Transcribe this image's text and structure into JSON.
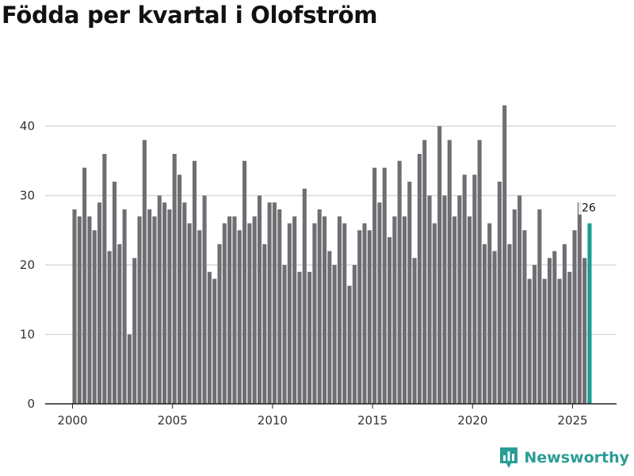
{
  "chart_data": {
    "type": "bar",
    "title": "Födda per kvartal i Olofström",
    "xlabel": "",
    "ylabel": "",
    "ylim": [
      0,
      45
    ],
    "yticks": [
      0,
      10,
      20,
      30,
      40
    ],
    "xticks": [
      "2000",
      "2005",
      "2010",
      "2015",
      "2020",
      "2025"
    ],
    "grid": true,
    "colors": {
      "bar": "#6e6e73",
      "highlight": "#1a9e94",
      "grid": "#d9d9d9",
      "axis": "#222222"
    },
    "categories": [
      "2000 K1",
      "2000 K2",
      "2000 K3",
      "2000 K4",
      "2001 K1",
      "2001 K2",
      "2001 K3",
      "2001 K4",
      "2002 K1",
      "2002 K2",
      "2002 K3",
      "2002 K4",
      "2003 K1",
      "2003 K2",
      "2003 K3",
      "2003 K4",
      "2004 K1",
      "2004 K2",
      "2004 K3",
      "2004 K4",
      "2005 K1",
      "2005 K2",
      "2005 K3",
      "2005 K4",
      "2006 K1",
      "2006 K2",
      "2006 K3",
      "2006 K4",
      "2007 K1",
      "2007 K2",
      "2007 K3",
      "2007 K4",
      "2008 K1",
      "2008 K2",
      "2008 K3",
      "2008 K4",
      "2009 K1",
      "2009 K2",
      "2009 K3",
      "2009 K4",
      "2010 K1",
      "2010 K2",
      "2010 K3",
      "2010 K4",
      "2011 K1",
      "2011 K2",
      "2011 K3",
      "2011 K4",
      "2012 K1",
      "2012 K2",
      "2012 K3",
      "2012 K4",
      "2013 K1",
      "2013 K2",
      "2013 K3",
      "2013 K4",
      "2014 K1",
      "2014 K2",
      "2014 K3",
      "2014 K4",
      "2015 K1",
      "2015 K2",
      "2015 K3",
      "2015 K4",
      "2016 K1",
      "2016 K2",
      "2016 K3",
      "2016 K4",
      "2017 K1",
      "2017 K2",
      "2017 K3",
      "2017 K4",
      "2018 K1",
      "2018 K2",
      "2018 K3",
      "2018 K4",
      "2019 K1",
      "2019 K2",
      "2019 K3",
      "2019 K4",
      "2020 K1",
      "2020 K2",
      "2020 K3",
      "2020 K4",
      "2021 K1",
      "2021 K2",
      "2021 K3",
      "2021 K4",
      "2022 K1",
      "2022 K2",
      "2022 K3",
      "2022 K4",
      "2023 K1",
      "2023 K2",
      "2023 K3",
      "2023 K4",
      "2024 K1",
      "2024 K2",
      "2024 K3",
      "2024 K4",
      "2025 K1",
      "2025 K2",
      "2025 K3",
      "2025 K4"
    ],
    "values": [
      28,
      27,
      34,
      27,
      25,
      29,
      36,
      22,
      32,
      23,
      28,
      10,
      21,
      27,
      38,
      28,
      27,
      30,
      29,
      28,
      36,
      33,
      29,
      26,
      35,
      25,
      30,
      19,
      18,
      23,
      26,
      27,
      27,
      25,
      35,
      26,
      27,
      30,
      23,
      29,
      29,
      28,
      20,
      26,
      27,
      19,
      31,
      19,
      26,
      28,
      27,
      22,
      20,
      27,
      26,
      17,
      20,
      25,
      26,
      25,
      34,
      29,
      34,
      24,
      27,
      35,
      27,
      32,
      21,
      36,
      38,
      30,
      26,
      40,
      30,
      38,
      27,
      30,
      33,
      27,
      33,
      38,
      23,
      26,
      22,
      32,
      43,
      23,
      28,
      30,
      25,
      18,
      20,
      28,
      18,
      21,
      22,
      18,
      23,
      19,
      25,
      29,
      21,
      26
    ],
    "highlight_index": 103,
    "annotations": [
      {
        "category": "2025 K4",
        "text": "26"
      }
    ]
  },
  "branding": {
    "name": "Newsworthy",
    "icon": "bar-chart-logo-icon"
  }
}
